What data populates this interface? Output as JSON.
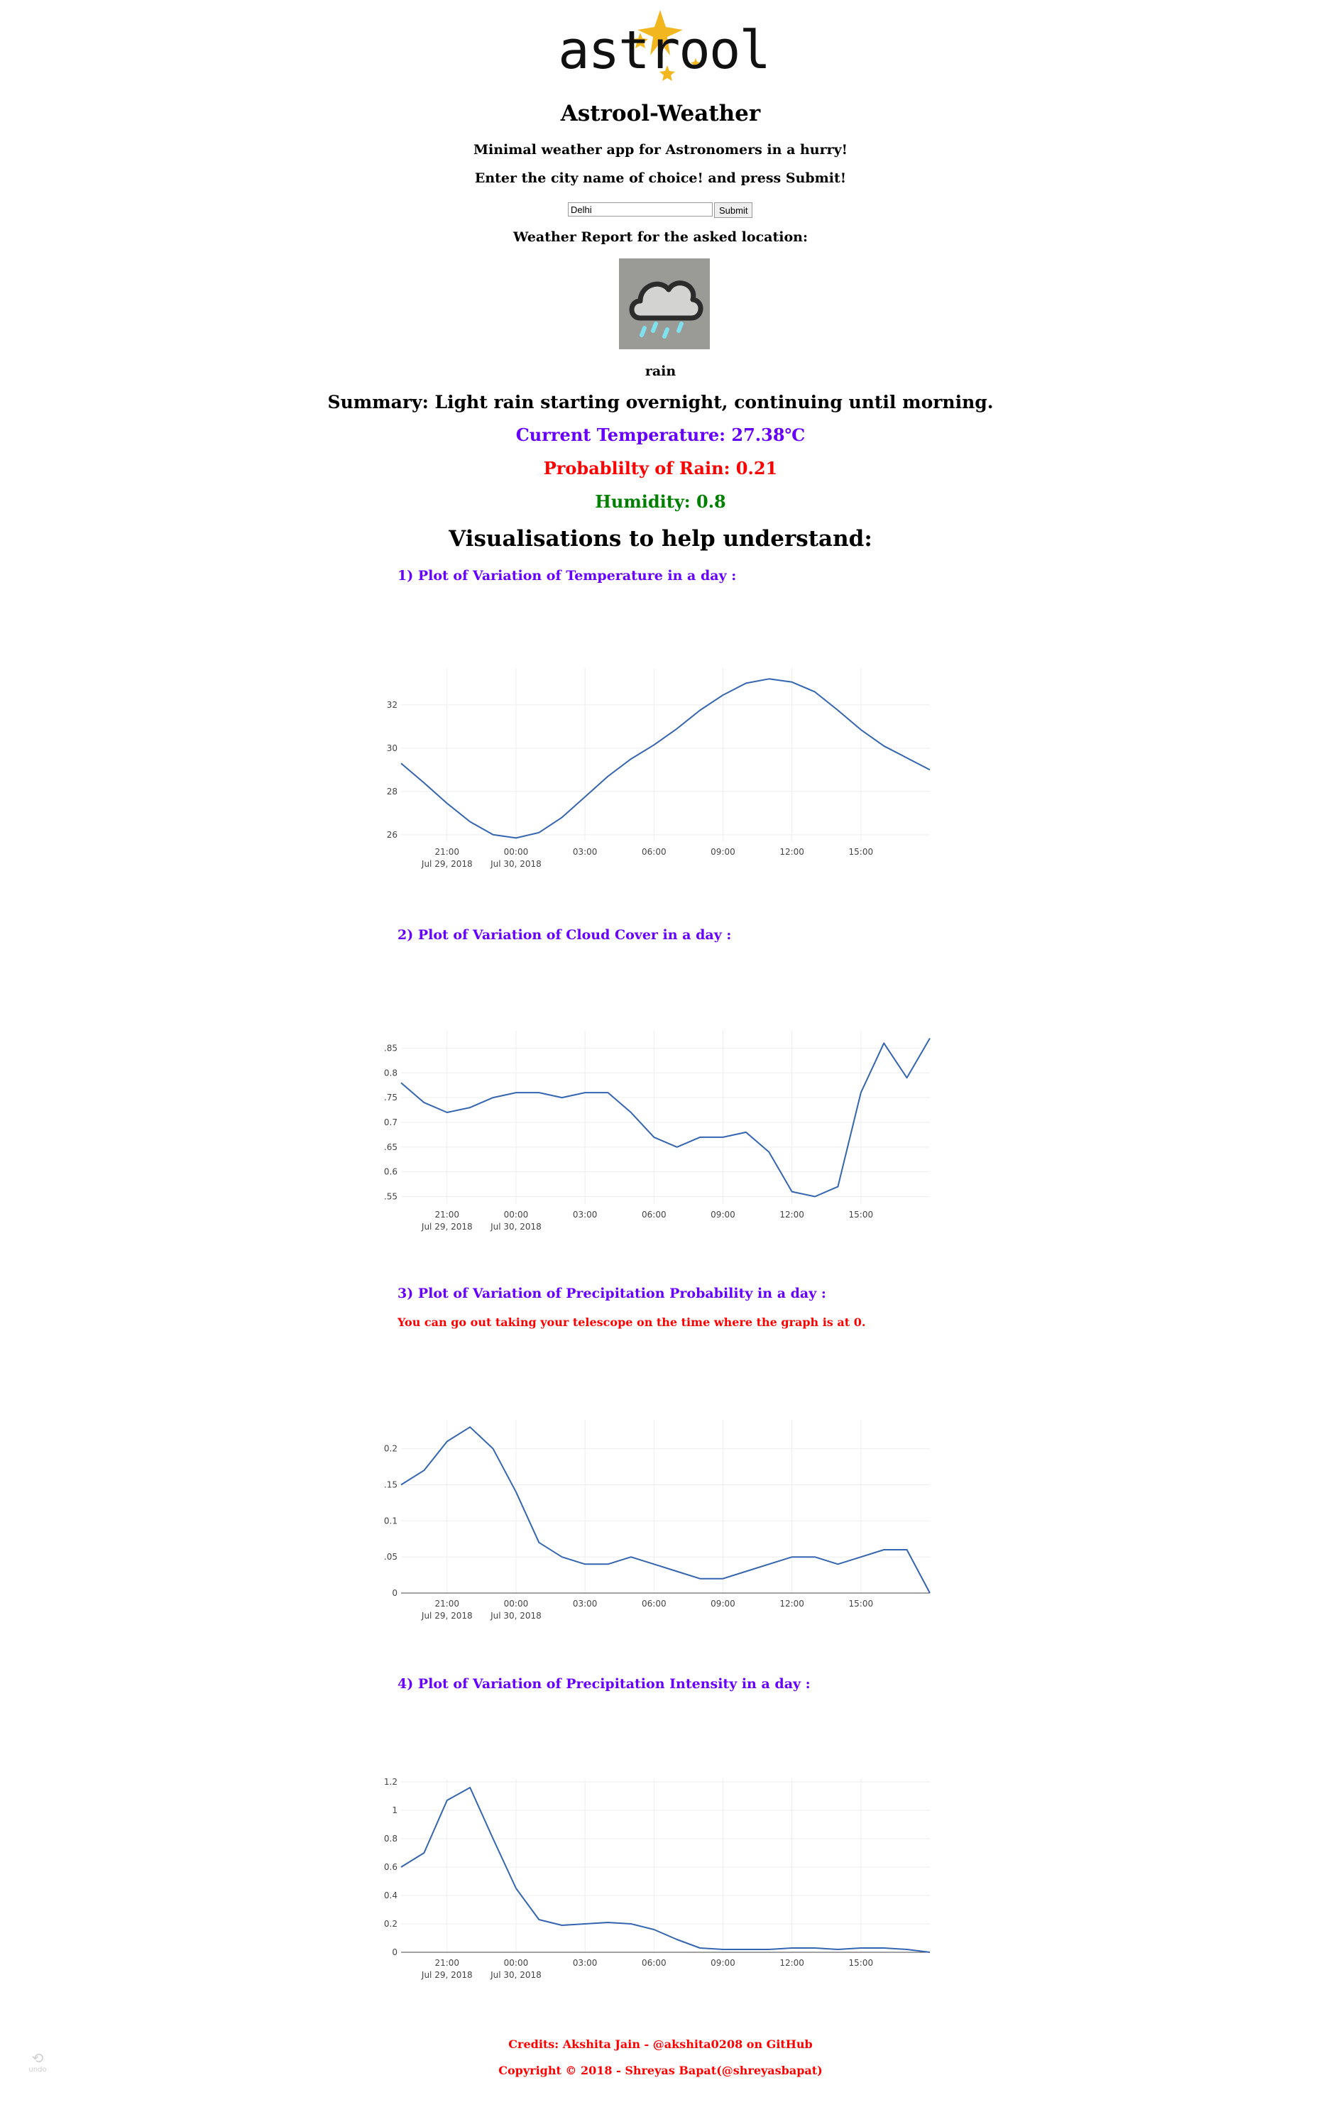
{
  "app": {
    "logo_text": "astrool",
    "title": "Astrool-Weather",
    "tagline": "Minimal weather app for Astronomers in a hurry!",
    "instruction": "Enter the city name of choice! and press Submit!"
  },
  "search": {
    "value": "Delhi",
    "submit_label": "Submit"
  },
  "report": {
    "heading": "Weather Report for the asked location:",
    "icon": "rain-cloud-icon",
    "icon_label": "rain",
    "summary": "Summary: Light rain starting overnight, continuing until morning.",
    "temperature": "Current Temperature: 27.38℃",
    "rain_probability": "Probablilty of Rain: 0.21",
    "humidity": "Humidity: 0.8"
  },
  "colors": {
    "temperature": "#6600ff",
    "rain": "#ff0000",
    "humidity": "#008000",
    "plot_heading": "#6600ff",
    "footer": "#ff0000",
    "series_line": "#3465b0",
    "grid": "#eeeeee"
  },
  "visualisations": {
    "heading": "Visualisations to help understand:",
    "note": "You can go out taking your telescope on the time where the graph is at 0."
  },
  "chart_data": [
    {
      "type": "line",
      "title": "1) Plot of Variation of Temperature in a day :",
      "x_hours": [
        -5,
        -4,
        -3,
        -2,
        -1,
        0,
        1,
        2,
        3,
        4,
        5,
        6,
        7,
        8,
        9,
        10,
        11,
        12,
        13,
        14,
        15,
        16,
        17,
        18
      ],
      "x_range": [
        -5,
        18
      ],
      "values": [
        29.3,
        28.4,
        27.45,
        26.6,
        26.0,
        25.85,
        26.1,
        26.8,
        27.75,
        28.7,
        29.5,
        30.15,
        30.9,
        31.75,
        32.45,
        33.0,
        33.2,
        33.05,
        32.6,
        31.75,
        30.85,
        30.1,
        29.55,
        29.0
      ],
      "ylim": [
        25.7,
        33.7
      ],
      "yticks": [
        26,
        28,
        30,
        32
      ],
      "ytick_labels": [
        "26",
        "28",
        "30",
        "32"
      ],
      "xticks": [
        -3,
        0,
        3,
        6,
        9,
        12,
        15
      ],
      "xtick_labels": [
        "21:00",
        "00:00",
        "03:00",
        "06:00",
        "09:00",
        "12:00",
        "15:00"
      ],
      "xtick_sublabels": [
        "Jul 29, 2018",
        "Jul 30, 2018",
        "",
        "",
        "",
        "",
        ""
      ],
      "xlabel": "",
      "ylabel": "",
      "grid": true
    },
    {
      "type": "line",
      "title": "2) Plot of Variation of Cloud Cover in a day :",
      "x_hours": [
        -5,
        -4,
        -3,
        -2,
        -1,
        0,
        1,
        2,
        3,
        4,
        5,
        6,
        7,
        8,
        9,
        10,
        11,
        12,
        13,
        14,
        15,
        16,
        17,
        18
      ],
      "x_range": [
        -5,
        18
      ],
      "values": [
        0.78,
        0.74,
        0.72,
        0.73,
        0.75,
        0.76,
        0.76,
        0.75,
        0.76,
        0.76,
        0.72,
        0.67,
        0.65,
        0.67,
        0.67,
        0.68,
        0.64,
        0.56,
        0.55,
        0.57,
        0.76,
        0.86,
        0.79,
        0.87
      ],
      "ylim": [
        0.535,
        0.885
      ],
      "yticks": [
        0.55,
        0.6,
        0.65,
        0.7,
        0.75,
        0.8,
        0.85
      ],
      "ytick_labels": [
        "0.55",
        "0.6",
        "0.65",
        "0.7",
        "0.75",
        "0.8",
        "0.85"
      ],
      "xticks": [
        -3,
        0,
        3,
        6,
        9,
        12,
        15
      ],
      "xtick_labels": [
        "21:00",
        "00:00",
        "03:00",
        "06:00",
        "09:00",
        "12:00",
        "15:00"
      ],
      "xtick_sublabels": [
        "Jul 29, 2018",
        "Jul 30, 2018",
        "",
        "",
        "",
        "",
        ""
      ],
      "xlabel": "",
      "ylabel": "",
      "grid": true
    },
    {
      "type": "line",
      "title": "3) Plot of Variation of Precipitation Probability in a day :",
      "x_hours": [
        -5,
        -4,
        -3,
        -2,
        -1,
        0,
        1,
        2,
        3,
        4,
        5,
        6,
        7,
        8,
        9,
        10,
        11,
        12,
        13,
        14,
        15,
        16,
        17,
        18
      ],
      "x_range": [
        -5,
        18
      ],
      "values": [
        0.15,
        0.17,
        0.21,
        0.23,
        0.2,
        0.14,
        0.07,
        0.05,
        0.04,
        0.04,
        0.05,
        0.04,
        0.03,
        0.02,
        0.02,
        0.03,
        0.04,
        0.05,
        0.05,
        0.04,
        0.05,
        0.06,
        0.06,
        0.0
      ],
      "ylim": [
        0,
        0.24
      ],
      "yticks": [
        0,
        0.05,
        0.1,
        0.15,
        0.2
      ],
      "ytick_labels": [
        "0",
        "0.05",
        "0.1",
        "0.15",
        "0.2"
      ],
      "xticks": [
        -3,
        0,
        3,
        6,
        9,
        12,
        15
      ],
      "xtick_labels": [
        "21:00",
        "00:00",
        "03:00",
        "06:00",
        "09:00",
        "12:00",
        "15:00"
      ],
      "xtick_sublabels": [
        "Jul 29, 2018",
        "Jul 30, 2018",
        "",
        "",
        "",
        "",
        ""
      ],
      "xlabel": "",
      "ylabel": "",
      "grid": true
    },
    {
      "type": "line",
      "title": "4) Plot of Variation of Precipitation Intensity in a day :",
      "x_hours": [
        -5,
        -4,
        -3,
        -2,
        -1,
        0,
        1,
        2,
        3,
        4,
        5,
        6,
        7,
        8,
        9,
        10,
        11,
        12,
        13,
        14,
        15,
        16,
        17,
        18
      ],
      "x_range": [
        -5,
        18
      ],
      "values": [
        0.6,
        0.7,
        1.07,
        1.16,
        0.8,
        0.45,
        0.23,
        0.19,
        0.2,
        0.21,
        0.2,
        0.16,
        0.09,
        0.03,
        0.02,
        0.02,
        0.02,
        0.03,
        0.03,
        0.02,
        0.03,
        0.03,
        0.02,
        0.0
      ],
      "ylim": [
        0,
        1.22
      ],
      "yticks": [
        0,
        0.2,
        0.4,
        0.6,
        0.8,
        1,
        1.2
      ],
      "ytick_labels": [
        "0",
        "0.2",
        "0.4",
        "0.6",
        "0.8",
        "1",
        "1.2"
      ],
      "xticks": [
        -3,
        0,
        3,
        6,
        9,
        12,
        15
      ],
      "xtick_labels": [
        "21:00",
        "00:00",
        "03:00",
        "06:00",
        "09:00",
        "12:00",
        "15:00"
      ],
      "xtick_sublabels": [
        "Jul 29, 2018",
        "Jul 30, 2018",
        "",
        "",
        "",
        "",
        ""
      ],
      "xlabel": "",
      "ylabel": "",
      "grid": true
    }
  ],
  "footer": {
    "credits": "Credits: Akshita Jain - @akshita0208 on GitHub",
    "copyright": "Copyright © 2018 - Shreyas Bapat(@shreyasbapat)"
  },
  "corner": {
    "undo_icon": "undo-icon",
    "undo_label": "undo"
  }
}
